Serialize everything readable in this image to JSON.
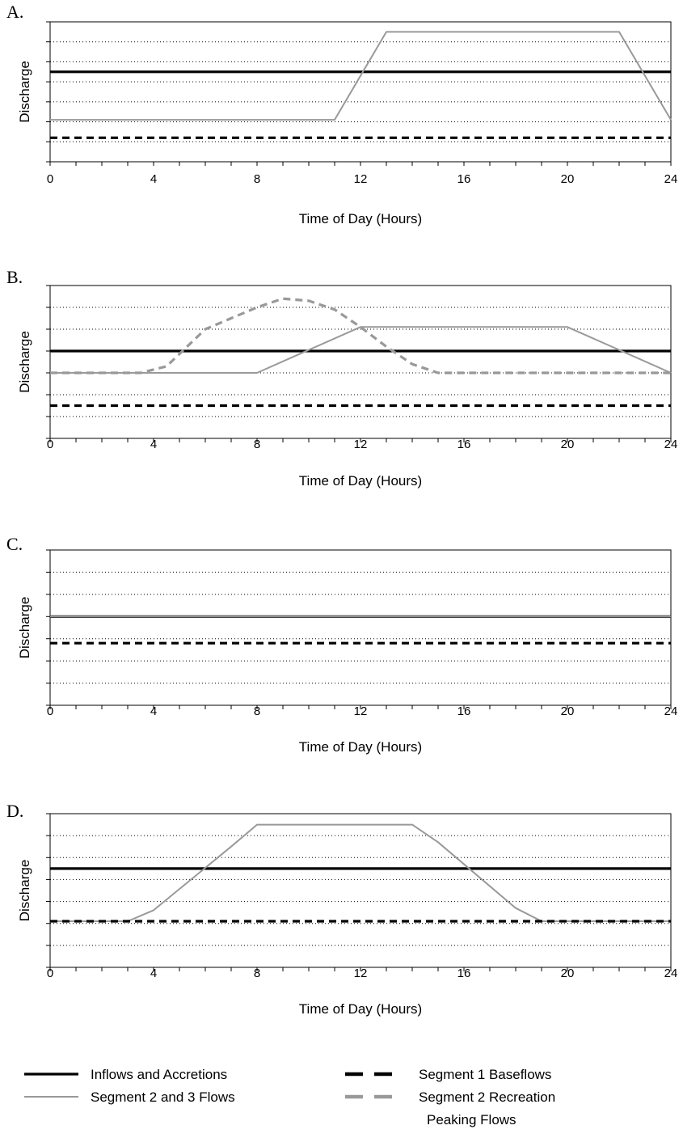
{
  "legend": [
    {
      "key": "inflows",
      "label": "Inflows and Accretions",
      "color": "#000000",
      "dashed": false
    },
    {
      "key": "seg23",
      "label": "Segment 2 and 3 Flows",
      "color": "#999999",
      "dashed": false
    },
    {
      "key": "seg1base",
      "label": "Segment 1 Baseflows",
      "color": "#000000",
      "dashed": true
    },
    {
      "key": "seg2rec",
      "label": "Segment 2 Recreation",
      "label_line2": "Peaking Flows",
      "color": "#999999",
      "dashed": true
    }
  ],
  "chart_data": [
    {
      "type": "line",
      "panel_label": "A.",
      "xlabel": "Time of Day (Hours)",
      "ylabel": "Discharge",
      "xlim": [
        0,
        24
      ],
      "xticks": [
        0,
        4,
        8,
        12,
        16,
        20,
        24
      ],
      "ylim": [
        0,
        7
      ],
      "grid": "horizontal dotted",
      "series": [
        {
          "key": "inflows",
          "x": [
            0,
            24
          ],
          "y": [
            4.5,
            4.5
          ]
        },
        {
          "key": "seg23",
          "x": [
            0,
            11,
            13,
            22,
            24
          ],
          "y": [
            2.1,
            2.1,
            6.5,
            6.5,
            2.1
          ]
        },
        {
          "key": "seg1base",
          "x": [
            0,
            24
          ],
          "y": [
            1.2,
            1.2
          ]
        }
      ]
    },
    {
      "type": "line",
      "panel_label": "B.",
      "xlabel": "Time of Day (Hours)",
      "ylabel": "Discharge",
      "xlim": [
        0,
        24
      ],
      "xticks": [
        0,
        4,
        8,
        12,
        16,
        20,
        24
      ],
      "ylim": [
        0,
        7
      ],
      "grid": "horizontal dotted",
      "series": [
        {
          "key": "inflows",
          "x": [
            0,
            24
          ],
          "y": [
            4.0,
            4.0
          ]
        },
        {
          "key": "seg23",
          "x": [
            0,
            8,
            12,
            20,
            24
          ],
          "y": [
            3.0,
            3.0,
            5.1,
            5.1,
            3.0
          ]
        },
        {
          "key": "seg2rec",
          "x": [
            0,
            3.5,
            4.5,
            6,
            8,
            9,
            10,
            11,
            12,
            13,
            14,
            15,
            16,
            24
          ],
          "y": [
            3.0,
            3.0,
            3.3,
            5.0,
            6.0,
            6.4,
            6.3,
            5.9,
            5.1,
            4.2,
            3.4,
            3.0,
            3.0,
            3.0
          ]
        },
        {
          "key": "seg1base",
          "x": [
            0,
            24
          ],
          "y": [
            1.5,
            1.5
          ]
        }
      ]
    },
    {
      "type": "line",
      "panel_label": "C.",
      "xlabel": "Time of Day (Hours)",
      "ylabel": "Discharge",
      "xlim": [
        0,
        24
      ],
      "xticks": [
        0,
        4,
        8,
        12,
        16,
        20,
        24
      ],
      "ylim": [
        0,
        7
      ],
      "grid": "horizontal dotted",
      "series": [
        {
          "key": "inflows",
          "x": [
            0,
            24
          ],
          "y": [
            4.0,
            4.0
          ]
        },
        {
          "key": "seg23",
          "x": [
            0,
            24
          ],
          "y": [
            4.0,
            4.0
          ]
        },
        {
          "key": "seg1base",
          "x": [
            0,
            24
          ],
          "y": [
            2.8,
            2.8
          ]
        }
      ]
    },
    {
      "type": "line",
      "panel_label": "D.",
      "xlabel": "Time of Day (Hours)",
      "ylabel": "Discharge",
      "xlim": [
        0,
        24
      ],
      "xticks": [
        0,
        4,
        8,
        12,
        16,
        20,
        24
      ],
      "ylim": [
        0,
        7
      ],
      "grid": "horizontal dotted",
      "series": [
        {
          "key": "inflows",
          "x": [
            0,
            24
          ],
          "y": [
            4.5,
            4.5
          ]
        },
        {
          "key": "seg23",
          "x": [
            0,
            3,
            4,
            7,
            8,
            14,
            15,
            18,
            19,
            24
          ],
          "y": [
            2.1,
            2.1,
            2.6,
            5.5,
            6.5,
            6.5,
            5.7,
            2.7,
            2.1,
            2.1
          ]
        },
        {
          "key": "seg1base",
          "x": [
            0,
            24
          ],
          "y": [
            2.1,
            2.1
          ]
        }
      ]
    }
  ]
}
